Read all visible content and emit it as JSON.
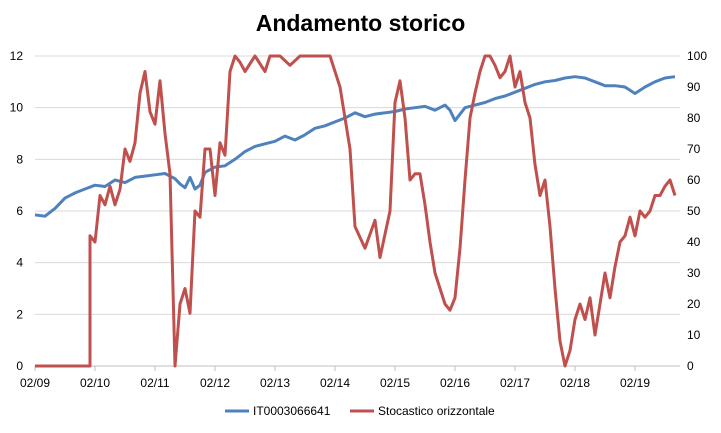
{
  "chart_data": {
    "type": "line",
    "title": "Andamento storico",
    "xlabel": "",
    "ylabel_left": "",
    "ylabel_right": "",
    "ylim_left": [
      0,
      12
    ],
    "ylim_right": [
      0,
      100
    ],
    "y_ticks_left": [
      "0",
      "2",
      "4",
      "6",
      "8",
      "10",
      "12"
    ],
    "y_ticks_right": [
      "0",
      "10",
      "20",
      "30",
      "40",
      "50",
      "60",
      "70",
      "80",
      "90",
      "100"
    ],
    "x_ticks": [
      "02/09",
      "02/10",
      "02/11",
      "02/12",
      "02/13",
      "02/14",
      "02/15",
      "02/16",
      "02/17",
      "02/18",
      "02/19"
    ],
    "grid": "horizontal",
    "legend_position": "bottom",
    "colors": {
      "primary": "#4f81bd",
      "secondary": "#c0504d",
      "grid": "#d9d9d9",
      "axis": "#bfbfbf"
    },
    "series": [
      {
        "name": "IT0003066641",
        "axis": "left",
        "x": [
          "2009-02",
          "2009-04",
          "2009-06",
          "2009-08",
          "2009-10",
          "2009-12",
          "2010-02",
          "2010-04",
          "2010-06",
          "2010-08",
          "2010-10",
          "2010-12",
          "2011-02",
          "2011-04",
          "2011-06",
          "2011-07",
          "2011-08",
          "2011-09",
          "2011-10",
          "2011-11",
          "2011-12",
          "2012-02",
          "2012-04",
          "2012-06",
          "2012-08",
          "2012-10",
          "2012-12",
          "2013-02",
          "2013-04",
          "2013-06",
          "2013-08",
          "2013-10",
          "2013-12",
          "2014-02",
          "2014-04",
          "2014-06",
          "2014-08",
          "2014-10",
          "2014-12",
          "2015-02",
          "2015-04",
          "2015-06",
          "2015-08",
          "2015-10",
          "2015-12",
          "2016-01",
          "2016-02",
          "2016-04",
          "2016-06",
          "2016-08",
          "2016-10",
          "2016-12",
          "2017-02",
          "2017-04",
          "2017-06",
          "2017-08",
          "2017-10",
          "2017-12",
          "2018-02",
          "2018-04",
          "2018-06",
          "2018-08",
          "2018-10",
          "2018-12",
          "2019-02",
          "2019-04",
          "2019-06",
          "2019-08",
          "2019-10"
        ],
        "values": [
          5.85,
          5.8,
          6.1,
          6.5,
          6.7,
          6.85,
          7.0,
          6.95,
          7.2,
          7.1,
          7.3,
          7.35,
          7.4,
          7.45,
          7.25,
          7.05,
          6.9,
          7.3,
          6.85,
          7.0,
          7.5,
          7.7,
          7.75,
          8.0,
          8.3,
          8.5,
          8.6,
          8.7,
          8.9,
          8.75,
          8.95,
          9.2,
          9.3,
          9.45,
          9.6,
          9.8,
          9.65,
          9.75,
          9.8,
          9.85,
          9.95,
          10.0,
          10.05,
          9.9,
          10.1,
          9.9,
          9.5,
          10.0,
          10.1,
          10.2,
          10.35,
          10.45,
          10.6,
          10.75,
          10.9,
          11.0,
          11.05,
          11.15,
          11.2,
          11.15,
          11.0,
          10.85,
          10.85,
          10.8,
          10.55,
          10.8,
          11.0,
          11.15,
          11.2
        ]
      },
      {
        "name": "Stocastico orizzontale",
        "axis": "right",
        "x": [
          "2009-02",
          "2009-06",
          "2009-10",
          "2010-01",
          "2010-01",
          "2010-02",
          "2010-03",
          "2010-04",
          "2010-05",
          "2010-06",
          "2010-07",
          "2010-08",
          "2010-09",
          "2010-10",
          "2010-11",
          "2010-12",
          "2011-01",
          "2011-02",
          "2011-03",
          "2011-04",
          "2011-05",
          "2011-06",
          "2011-07",
          "2011-08",
          "2011-09",
          "2011-10",
          "2011-11",
          "2011-12",
          "2012-01",
          "2012-02",
          "2012-03",
          "2012-04",
          "2012-05",
          "2012-06",
          "2012-07",
          "2012-08",
          "2012-10",
          "2012-12",
          "2013-01",
          "2013-03",
          "2013-05",
          "2013-07",
          "2013-09",
          "2013-11",
          "2014-01",
          "2014-03",
          "2014-05",
          "2014-06",
          "2014-08",
          "2014-10",
          "2014-11",
          "2015-01",
          "2015-02",
          "2015-03",
          "2015-04",
          "2015-05",
          "2015-06",
          "2015-07",
          "2015-08",
          "2015-09",
          "2015-10",
          "2015-11",
          "2015-12",
          "2016-01",
          "2016-02",
          "2016-03",
          "2016-04",
          "2016-05",
          "2016-06",
          "2016-07",
          "2016-08",
          "2016-09",
          "2016-10",
          "2016-11",
          "2016-12",
          "2017-01",
          "2017-02",
          "2017-03",
          "2017-04",
          "2017-05",
          "2017-06",
          "2017-07",
          "2017-08",
          "2017-09",
          "2017-10",
          "2017-11",
          "2017-12",
          "2018-01",
          "2018-02",
          "2018-03",
          "2018-04",
          "2018-05",
          "2018-06",
          "2018-07",
          "2018-08",
          "2018-09",
          "2018-10",
          "2018-11",
          "2018-12",
          "2019-01",
          "2019-02",
          "2019-03",
          "2019-04",
          "2019-05",
          "2019-06",
          "2019-07",
          "2019-08",
          "2019-09",
          "2019-10"
        ],
        "values": [
          0,
          0,
          0,
          0,
          42,
          40,
          55,
          52,
          58,
          52,
          57,
          70,
          66,
          72,
          88,
          95,
          82,
          78,
          92,
          75,
          62,
          0,
          20,
          25,
          17,
          50,
          48,
          70,
          70,
          55,
          72,
          68,
          95,
          100,
          98,
          95,
          100,
          95,
          100,
          100,
          97,
          100,
          100,
          100,
          100,
          90,
          70,
          45,
          38,
          47,
          35,
          50,
          85,
          92,
          80,
          60,
          62,
          62,
          52,
          40,
          30,
          25,
          20,
          18,
          22,
          38,
          60,
          80,
          88,
          95,
          100,
          100,
          97,
          93,
          95,
          100,
          90,
          95,
          85,
          80,
          65,
          55,
          60,
          45,
          25,
          8,
          0,
          5,
          15,
          20,
          15,
          22,
          10,
          20,
          30,
          22,
          32,
          40,
          42,
          48,
          42,
          50,
          48,
          50,
          55,
          55,
          58,
          60,
          55
        ]
      }
    ]
  }
}
